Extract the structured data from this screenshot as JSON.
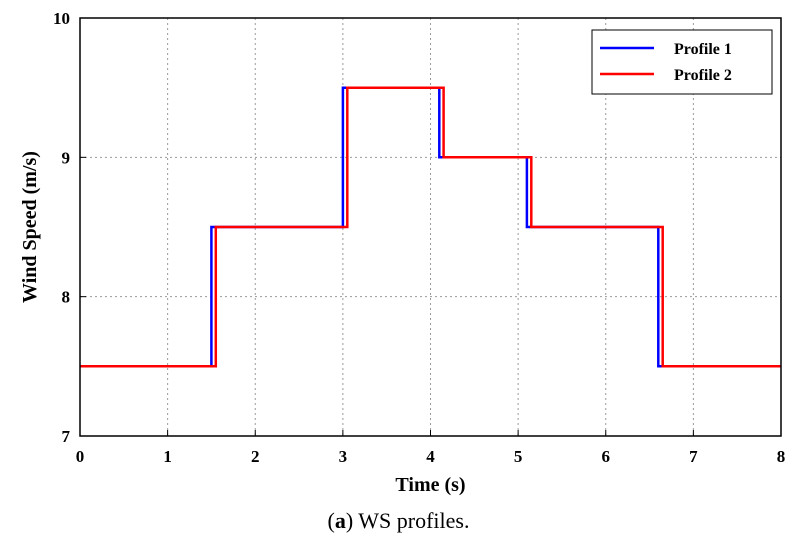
{
  "chart_data": {
    "type": "line",
    "xlabel": "Time (s)",
    "ylabel": "Wind Speed (m/s)",
    "xlim": [
      0,
      8
    ],
    "ylim": [
      7,
      10
    ],
    "xticks": [
      "0",
      "1",
      "2",
      "3",
      "4",
      "5",
      "6",
      "7",
      "8"
    ],
    "yticks": [
      "7",
      "8",
      "9",
      "10"
    ],
    "grid": true,
    "legend_position": "top-right",
    "series": [
      {
        "name": "Profile 1",
        "color": "#0000ff",
        "points": [
          [
            0,
            7.5
          ],
          [
            1.5,
            7.5
          ],
          [
            1.5,
            8.5
          ],
          [
            3.0,
            8.5
          ],
          [
            3.0,
            9.5
          ],
          [
            4.1,
            9.5
          ],
          [
            4.1,
            9.0
          ],
          [
            5.1,
            9.0
          ],
          [
            5.1,
            8.5
          ],
          [
            6.6,
            8.5
          ],
          [
            6.6,
            7.5
          ],
          [
            8.0,
            7.5
          ]
        ]
      },
      {
        "name": "Profile 2",
        "color": "#ff0000",
        "points": [
          [
            0,
            7.5
          ],
          [
            1.55,
            7.5
          ],
          [
            1.55,
            8.5
          ],
          [
            3.05,
            8.5
          ],
          [
            3.05,
            9.5
          ],
          [
            4.15,
            9.5
          ],
          [
            4.15,
            9.0
          ],
          [
            5.15,
            9.0
          ],
          [
            5.15,
            8.5
          ],
          [
            6.65,
            8.5
          ],
          [
            6.65,
            7.5
          ],
          [
            8.0,
            7.5
          ]
        ]
      }
    ]
  },
  "caption": {
    "bold_part": "a",
    "text": ") WS profiles."
  }
}
